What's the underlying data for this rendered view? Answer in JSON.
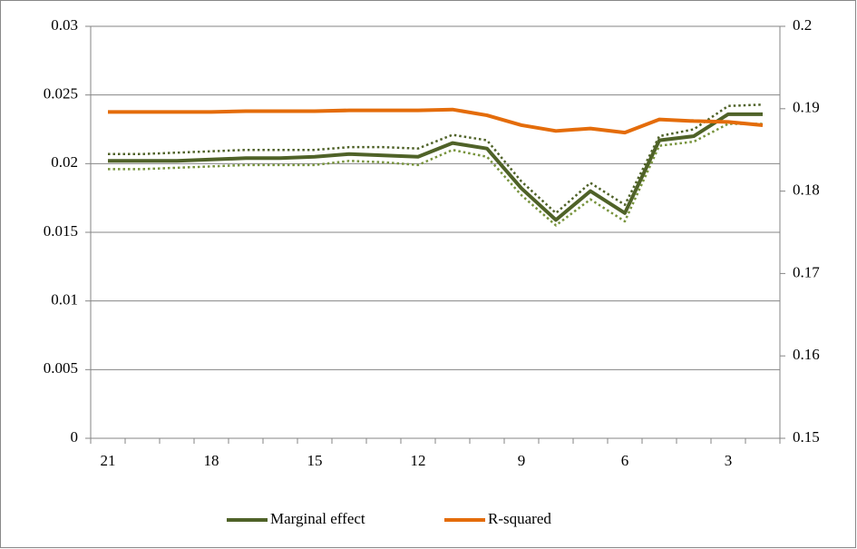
{
  "chart_data": {
    "type": "line",
    "categories": [
      "21",
      null,
      null,
      "18",
      null,
      null,
      "15",
      null,
      null,
      "12",
      null,
      null,
      "9",
      null,
      null,
      "6",
      null,
      null,
      "3",
      null
    ],
    "ylim": [
      0,
      0.03
    ],
    "yticks": [
      0,
      0.005,
      0.01,
      0.015,
      0.02,
      0.025,
      0.03
    ],
    "y2lim": [
      0.15,
      0.2
    ],
    "y2ticks": [
      0.15,
      0.16,
      0.17,
      0.18,
      0.19,
      0.2
    ],
    "grid": true,
    "legend": "bottom",
    "series": [
      {
        "name": "Marginal effect",
        "color": "#4f6228",
        "style": "solid",
        "values": [
          0.0202,
          0.0202,
          0.0202,
          0.0203,
          0.0204,
          0.0204,
          0.0205,
          0.0207,
          0.0206,
          0.0205,
          0.0215,
          0.0211,
          0.0182,
          0.0159,
          0.018,
          0.0164,
          0.0217,
          0.022,
          0.0236,
          0.0236
        ]
      },
      {
        "color": "#4f6228",
        "style": "dotted",
        "values": [
          0.0207,
          0.0207,
          0.0208,
          0.0209,
          0.021,
          0.021,
          0.021,
          0.0212,
          0.0212,
          0.0211,
          0.0221,
          0.0217,
          0.0187,
          0.0164,
          0.0186,
          0.017,
          0.022,
          0.0225,
          0.0242,
          0.0243
        ]
      },
      {
        "color": "#77933c",
        "style": "dotted",
        "values": [
          0.0196,
          0.0196,
          0.0197,
          0.0198,
          0.0199,
          0.0199,
          0.0199,
          0.0202,
          0.0201,
          0.0199,
          0.021,
          0.0205,
          0.0177,
          0.0155,
          0.0174,
          0.0158,
          0.0213,
          0.0216,
          0.0229,
          0.0229
        ]
      },
      {
        "name": "R-squared",
        "color": "#e46c0a",
        "style": "solid",
        "axis": "y2",
        "values": [
          0.1896,
          0.1896,
          0.1896,
          0.1896,
          0.1897,
          0.1897,
          0.1897,
          0.1898,
          0.1898,
          0.1898,
          0.1899,
          0.1892,
          0.188,
          0.1873,
          0.1876,
          0.1871,
          0.1887,
          0.1885,
          0.1884,
          0.188
        ]
      }
    ]
  }
}
